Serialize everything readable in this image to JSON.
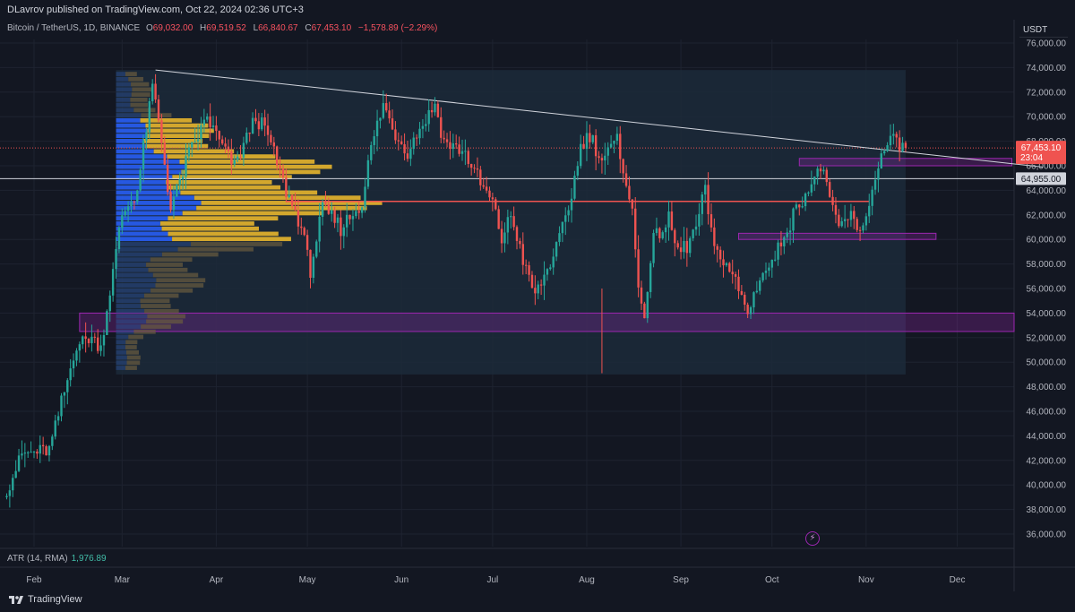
{
  "header": {
    "published": "DLavrov published on TradingView.com, Oct 22, 2024 02:36 UTC+3"
  },
  "legend": {
    "symbol": "Bitcoin / TetherUS, 1D, BINANCE",
    "o_label": "O",
    "o_value": "69,032.00",
    "h_label": "H",
    "h_value": "69,519.52",
    "l_label": "L",
    "l_value": "66,840.67",
    "c_label": "C",
    "c_value": "67,453.10",
    "change": "−1,578.89 (−2.29%)"
  },
  "currency": "USDT",
  "atr": {
    "label": "ATR (14, RMA)",
    "value": "1,976.89"
  },
  "brand": {
    "name": "TradingView"
  },
  "colors": {
    "background": "#131722",
    "up": "#26a69a",
    "down": "#ef5350",
    "grid": "#1e2330",
    "box_purple": "#9c27b0",
    "resistance": "#ef5350",
    "support_line": "#d1d4dc",
    "vp_blue": "#2962ff",
    "vp_yellow": "#e8b62c",
    "vp_gray": "#6b5d3e"
  },
  "chart_data": {
    "type": "candlestick",
    "title": "Bitcoin / TetherUS, 1D, BINANCE",
    "ylim": [
      35000,
      77000
    ],
    "y_ticks": [
      36000,
      38000,
      40000,
      42000,
      44000,
      46000,
      48000,
      50000,
      52000,
      54000,
      56000,
      58000,
      60000,
      62000,
      64000,
      66000,
      68000,
      70000,
      72000,
      74000,
      76000
    ],
    "y_tick_labels": [
      "36,000.00",
      "38,000.00",
      "40,000.00",
      "42,000.00",
      "44,000.00",
      "46,000.00",
      "48,000.00",
      "50,000.00",
      "52,000.00",
      "54,000.00",
      "56,000.00",
      "58,000.00",
      "60,000.00",
      "62,000.00",
      "64,000.00",
      "66,000.00",
      "68,000.00",
      "70,000.00",
      "72,000.00",
      "74,000.00",
      "76,000.00"
    ],
    "x_labels": [
      {
        "label": "Feb",
        "day": 0
      },
      {
        "label": "Mar",
        "day": 29
      },
      {
        "label": "Apr",
        "day": 60
      },
      {
        "label": "May",
        "day": 90
      },
      {
        "label": "Jun",
        "day": 121
      },
      {
        "label": "Jul",
        "day": 151
      },
      {
        "label": "Aug",
        "day": 182
      },
      {
        "label": "Sep",
        "day": 213
      },
      {
        "label": "Oct",
        "day": 243
      },
      {
        "label": "Nov",
        "day": 274
      },
      {
        "label": "Dec",
        "day": 304
      }
    ],
    "days_range": [
      -9,
      332
    ],
    "anchors": [
      [
        -9,
        39000
      ],
      [
        -3,
        42500
      ],
      [
        6,
        42800
      ],
      [
        12,
        48500
      ],
      [
        15,
        51500
      ],
      [
        20,
        52000
      ],
      [
        23,
        51200
      ],
      [
        30,
        62000
      ],
      [
        35,
        64000
      ],
      [
        40,
        72500
      ],
      [
        43,
        68000
      ],
      [
        46,
        62500
      ],
      [
        52,
        67000
      ],
      [
        58,
        70000
      ],
      [
        62,
        68000
      ],
      [
        67,
        66000
      ],
      [
        74,
        70000
      ],
      [
        78,
        68500
      ],
      [
        84,
        64000
      ],
      [
        89,
        61000
      ],
      [
        92,
        57500
      ],
      [
        96,
        62500
      ],
      [
        102,
        61000
      ],
      [
        109,
        63000
      ],
      [
        112,
        67500
      ],
      [
        116,
        71000
      ],
      [
        120,
        68500
      ],
      [
        124,
        67200
      ],
      [
        128,
        69000
      ],
      [
        133,
        71000
      ],
      [
        136,
        68000
      ],
      [
        143,
        67000
      ],
      [
        148,
        64500
      ],
      [
        152,
        63000
      ],
      [
        155,
        60000
      ],
      [
        158,
        62000
      ],
      [
        163,
        57500
      ],
      [
        166,
        55500
      ],
      [
        170,
        57500
      ],
      [
        174,
        60000
      ],
      [
        177,
        62500
      ],
      [
        181,
        67500
      ],
      [
        184,
        68500
      ],
      [
        188,
        66500
      ],
      [
        193,
        68000
      ],
      [
        195,
        66000
      ],
      [
        198,
        62000
      ],
      [
        200,
        56000
      ],
      [
        202,
        54000
      ],
      [
        205,
        60000
      ],
      [
        210,
        61500
      ],
      [
        213,
        59000
      ],
      [
        216,
        59500
      ],
      [
        219,
        61000
      ],
      [
        222,
        64000
      ],
      [
        225,
        59000
      ],
      [
        228,
        58500
      ],
      [
        232,
        56500
      ],
      [
        236,
        54000
      ],
      [
        240,
        57000
      ],
      [
        244,
        58000
      ],
      [
        249,
        61000
      ],
      [
        253,
        63000
      ],
      [
        258,
        65000
      ],
      [
        261,
        66000
      ],
      [
        263,
        63000
      ],
      [
        266,
        61000
      ],
      [
        270,
        62000
      ],
      [
        272,
        60500
      ],
      [
        276,
        62500
      ],
      [
        278,
        65500
      ],
      [
        282,
        67800
      ],
      [
        285,
        68000
      ],
      [
        287,
        67453
      ]
    ],
    "candle_count": 297,
    "annotations": {
      "current_price": {
        "value": 67453.1,
        "label": "67,453.10",
        "countdown": "23:04"
      },
      "horizontal_line": {
        "value": 64955.0,
        "label": "64,955.00"
      },
      "resistance_line": {
        "value": 63100,
        "from_day": 83,
        "to_day": 275
      },
      "descending_trendline": {
        "from": [
          40,
          73800
        ],
        "to": [
          332,
          65900
        ]
      },
      "zones": [
        {
          "y1": 52500,
          "y2": 54000,
          "from_day": 15,
          "to_day": 332
        },
        {
          "y1": 60000,
          "y2": 60500,
          "from_day": 232,
          "to_day": 297
        },
        {
          "y1": 66000,
          "y2": 66600,
          "from_day": 252,
          "to_day": 322
        }
      ],
      "volume_profile_region": {
        "from_day": 27,
        "to_day": 287,
        "y1": 49000,
        "y2": 73800
      }
    }
  }
}
